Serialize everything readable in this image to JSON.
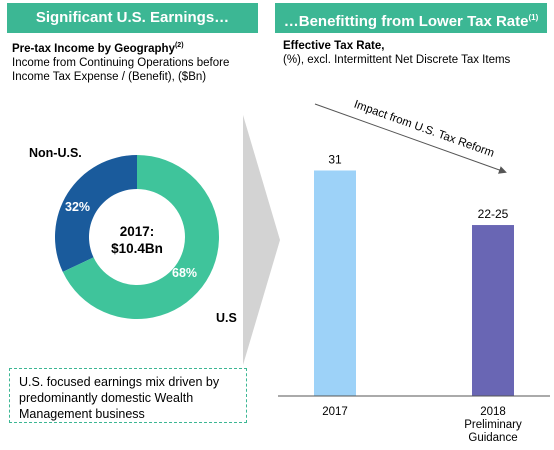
{
  "left_panel": {
    "banner": "Significant U.S. Earnings…",
    "subtitle_bold": "Pre-tax Income by Geography",
    "subtitle_sup": "(2)",
    "subtitle_line2": "Income from Continuing Operations before",
    "subtitle_line3": "Income Tax Expense / (Benefit), ($Bn)",
    "callout": "U.S. focused earnings mix driven by predominantly domestic Wealth Management business"
  },
  "right_panel": {
    "banner": "…Benefitting from Lower Tax Rate",
    "banner_sup": "(1)",
    "subtitle_bold": "Effective Tax Rate,",
    "subtitle_line2": "(%), excl. Intermittent Net Discrete Tax Items"
  },
  "colors": {
    "accent": "#3cb794",
    "donut_us": "#3fc49b",
    "donut_nonus": "#1a5b9c",
    "bar_2017": "#9dd2f8",
    "bar_2018": "#6966b4",
    "chevron": "#d3d3d3"
  },
  "chart_data": [
    {
      "type": "pie",
      "title": "",
      "center_label_line1": "2017:",
      "center_label_line2": "$10.4Bn",
      "slices": [
        {
          "name": "Non-U.S.",
          "value": 32,
          "label": "32%"
        },
        {
          "name": "U.S",
          "value": 68,
          "label": "68%"
        }
      ]
    },
    {
      "type": "bar",
      "title": "",
      "categories": [
        "2017",
        "2018"
      ],
      "category_lines": [
        [
          "2017"
        ],
        [
          "2018",
          "Preliminary",
          "Guidance"
        ]
      ],
      "values": [
        31,
        23.5
      ],
      "value_labels": [
        "31",
        "22-25"
      ],
      "ylim": [
        0,
        40
      ],
      "annotation": "Impact from U.S. Tax Reform"
    }
  ]
}
